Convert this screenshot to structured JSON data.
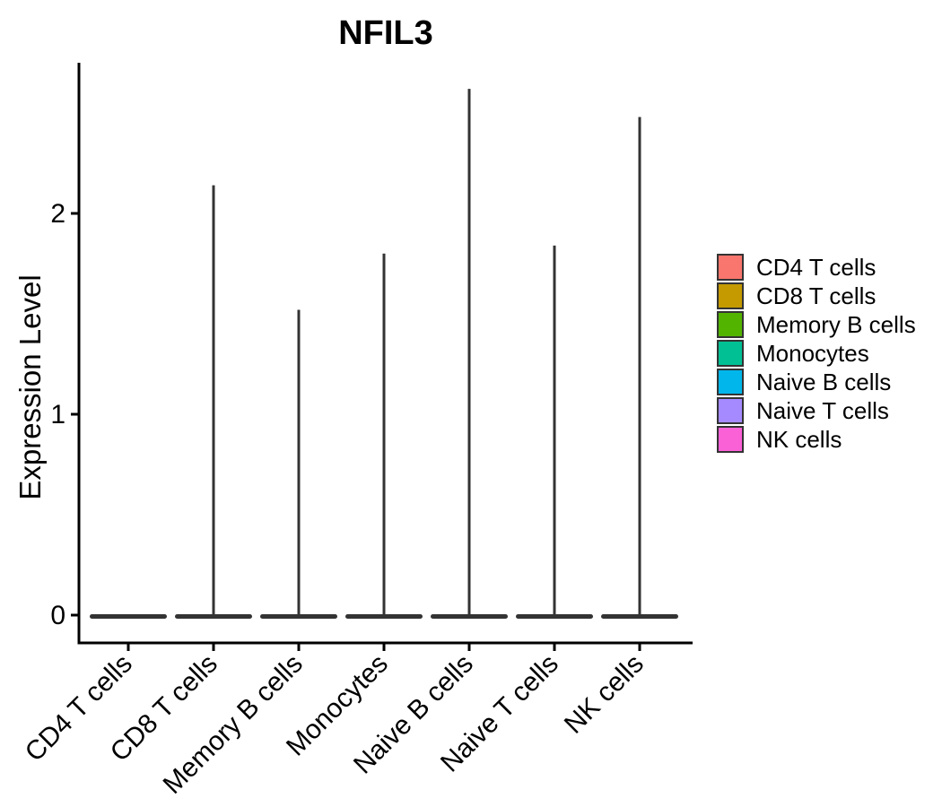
{
  "chart_data": {
    "type": "violin",
    "title": "NFIL3",
    "ylabel": "Expression Level",
    "categories": [
      "CD4 T cells",
      "CD8 T cells",
      "Memory B cells",
      "Monocytes",
      "Naive B cells",
      "Naive T cells",
      "NK cells"
    ],
    "series": [
      {
        "name": "CD4 T cells",
        "color": "#F8766D",
        "max_expression": 0.0,
        "bulk_at": 0
      },
      {
        "name": "CD8 T cells",
        "color": "#C49A00",
        "max_expression": 2.14,
        "bulk_at": 0
      },
      {
        "name": "Memory B cells",
        "color": "#53B400",
        "max_expression": 1.52,
        "bulk_at": 0
      },
      {
        "name": "Monocytes",
        "color": "#00C094",
        "max_expression": 1.8,
        "bulk_at": 0
      },
      {
        "name": "Naive B cells",
        "color": "#00B6EB",
        "max_expression": 2.62,
        "bulk_at": 0
      },
      {
        "name": "Naive T cells",
        "color": "#A58AFF",
        "max_expression": 1.84,
        "bulk_at": 0
      },
      {
        "name": "NK cells",
        "color": "#FB61D7",
        "max_expression": 2.48,
        "bulk_at": 0
      }
    ],
    "yticks": [
      0,
      1,
      2
    ],
    "ylim": [
      -0.06,
      2.75
    ],
    "grid": false,
    "legend_position": "right",
    "description": "Violin plot of NFIL3 expression per cell type; density is concentrated at 0 (flat dark bars) with thin spikes reaching each group's maximum expression."
  },
  "colors": {
    "axis": "#000000",
    "violin": "#333333",
    "text": "#000000",
    "background": "#FFFFFF"
  }
}
